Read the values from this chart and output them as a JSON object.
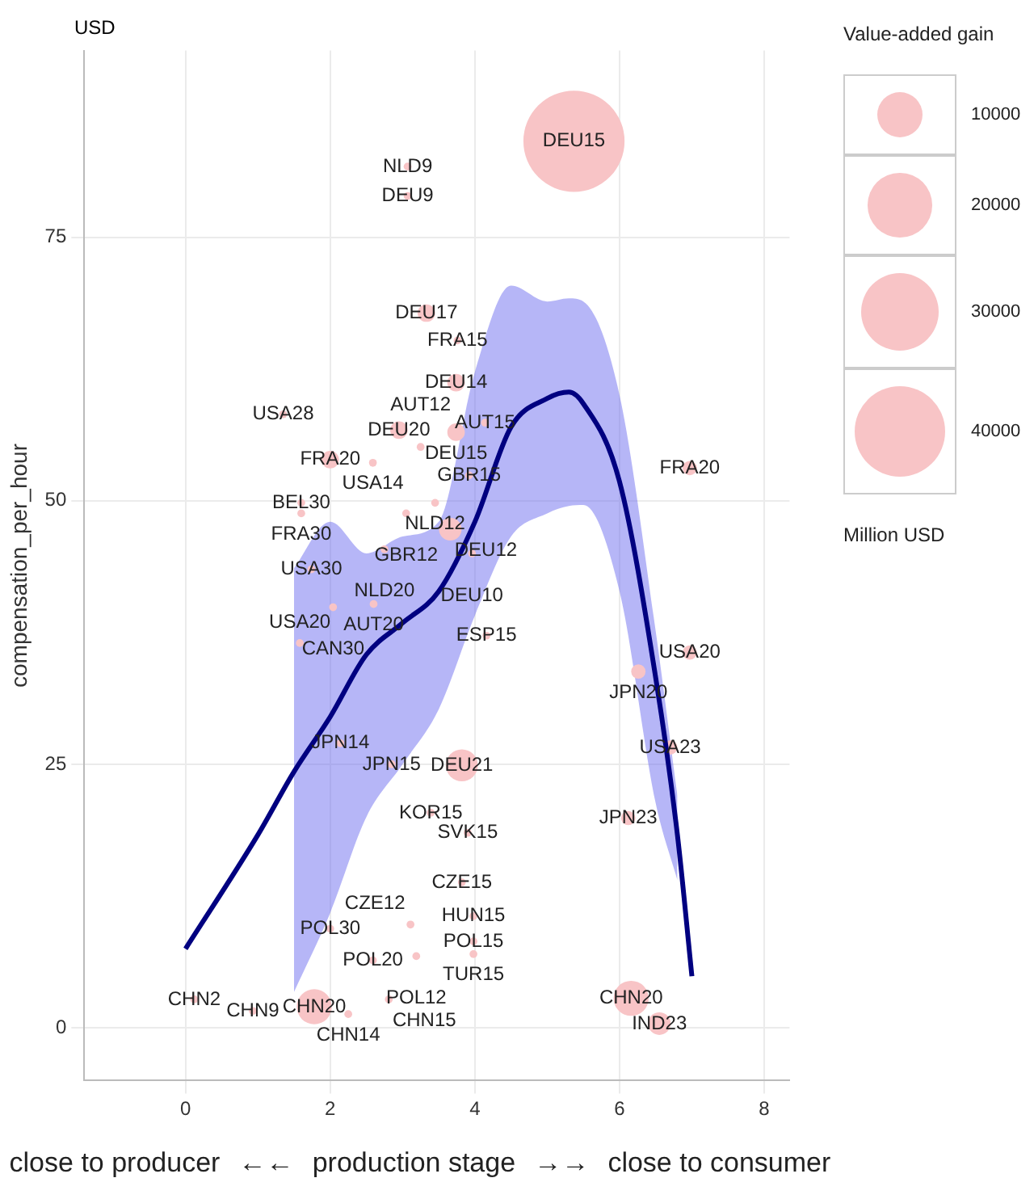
{
  "chart_data": {
    "type": "bubble",
    "xlabel": "production stage",
    "ylabel": "compensation_per_hour",
    "legend_title": "Value-added gain",
    "grid": true,
    "annotations": [
      "USD",
      "close to producer",
      "←←",
      "→→",
      "close to consumer",
      "Million USD"
    ],
    "xlim": [
      -1.4,
      8.35
    ],
    "ylim": [
      -5,
      92.7
    ],
    "xticks": [
      0,
      2,
      4,
      6,
      8
    ],
    "yticks": [
      0,
      25,
      50,
      75
    ],
    "size_legend": [
      10000,
      20000,
      30000,
      40000
    ],
    "series": [
      {
        "color": "#f8c4c6",
        "x": [
          5.37,
          3.07,
          3.07,
          1.35,
          3.33,
          3.76,
          3.74,
          4.14,
          3.74,
          2.95,
          3.25,
          2.0,
          2.59,
          3.92,
          1.6,
          1.6,
          3.45,
          3.05,
          3.66,
          2.75,
          3.96,
          1.74,
          2.6,
          2.04,
          4.16,
          1.58,
          2.14,
          2.85,
          3.82,
          3.39,
          3.9,
          3.82,
          3.98,
          3.98,
          3.98,
          2.0,
          3.11,
          3.19,
          2.59,
          0.12,
          0.93,
          1.78,
          2.25,
          2.81,
          6.16,
          6.55,
          6.97,
          6.97,
          6.26,
          6.7,
          6.12
        ],
        "values": [
          84.1,
          81.7,
          78.9,
          58.2,
          67.8,
          65.2,
          61.2,
          57.4,
          56.5,
          56.7,
          55.1,
          53.9,
          53.6,
          52.4,
          49.8,
          48.8,
          49.8,
          48.8,
          47.3,
          45.4,
          45.0,
          43.5,
          40.2,
          39.9,
          37.2,
          36.5,
          27.0,
          25.0,
          24.9,
          20.4,
          18.5,
          13.8,
          10.6,
          8.2,
          7.0,
          9.4,
          9.8,
          6.8,
          6.4,
          2.7,
          1.6,
          2.0,
          1.3,
          2.7,
          2.8,
          0.4,
          53.1,
          35.6,
          33.8,
          26.6,
          19.9
        ],
        "sizes": [
          50000,
          300,
          300,
          300,
          1500,
          300,
          1500,
          300,
          1500,
          1500,
          300,
          1500,
          300,
          300,
          300,
          300,
          300,
          300,
          2500,
          300,
          300,
          300,
          300,
          300,
          300,
          300,
          300,
          300,
          5000,
          300,
          300,
          300,
          300,
          300,
          300,
          300,
          300,
          300,
          300,
          300,
          300,
          6000,
          300,
          300,
          6000,
          2500,
          1000,
          1000,
          1000,
          1000,
          1000
        ],
        "value_labels": [
          "DEU15",
          "NLD9",
          "DEU9",
          "USA28",
          "DEU17",
          "FRA15",
          "DEU14",
          "AUT15",
          "DEU15",
          "DEU20",
          "AUT12",
          "FRA20",
          "USA14",
          "GBR15",
          "BEL30",
          "FRA30",
          "NLD12",
          "GBR12",
          "DEU12",
          "NLD20",
          "DEU10",
          "USA30",
          "AUT20",
          "CAN30",
          "ESP15",
          "USA20",
          "JPN14",
          "JPN15",
          "DEU21",
          "KOR15",
          "SVK15",
          "CZE15",
          "HUN15",
          "POL15",
          "TUR15",
          "POL30",
          "CZE12",
          "POL12",
          "POL20",
          "CHN2",
          "CHN9",
          "CHN20",
          "CHN14",
          "CHN15",
          "CHN20",
          "IND23",
          "FRA20",
          "USA20",
          "JPN20",
          "USA23",
          "JPN23"
        ]
      },
      {
        "type": "line",
        "color": "#000080",
        "x": [
          0,
          1,
          1.5,
          2,
          2.5,
          3,
          3.5,
          4,
          4.5,
          5,
          5.3,
          5.5,
          6,
          6.5,
          6.8,
          7
        ],
        "values": [
          7.5,
          18.3,
          24.3,
          29.5,
          35.4,
          38.4,
          41.4,
          48,
          57,
          59.7,
          60.3,
          59.2,
          51.8,
          33.2,
          18.3,
          4.9
        ],
        "lower": [
          null,
          null,
          3.4,
          10.9,
          20,
          25,
          30.2,
          39.1,
          46.6,
          48.8,
          49.5,
          49.6,
          41.4,
          21.3,
          14,
          null
        ],
        "upper": [
          null,
          null,
          43.6,
          48,
          45,
          46.6,
          48,
          62.2,
          70.4,
          68.9,
          69.2,
          68.9,
          60,
          37.6,
          22,
          null
        ]
      }
    ]
  }
}
